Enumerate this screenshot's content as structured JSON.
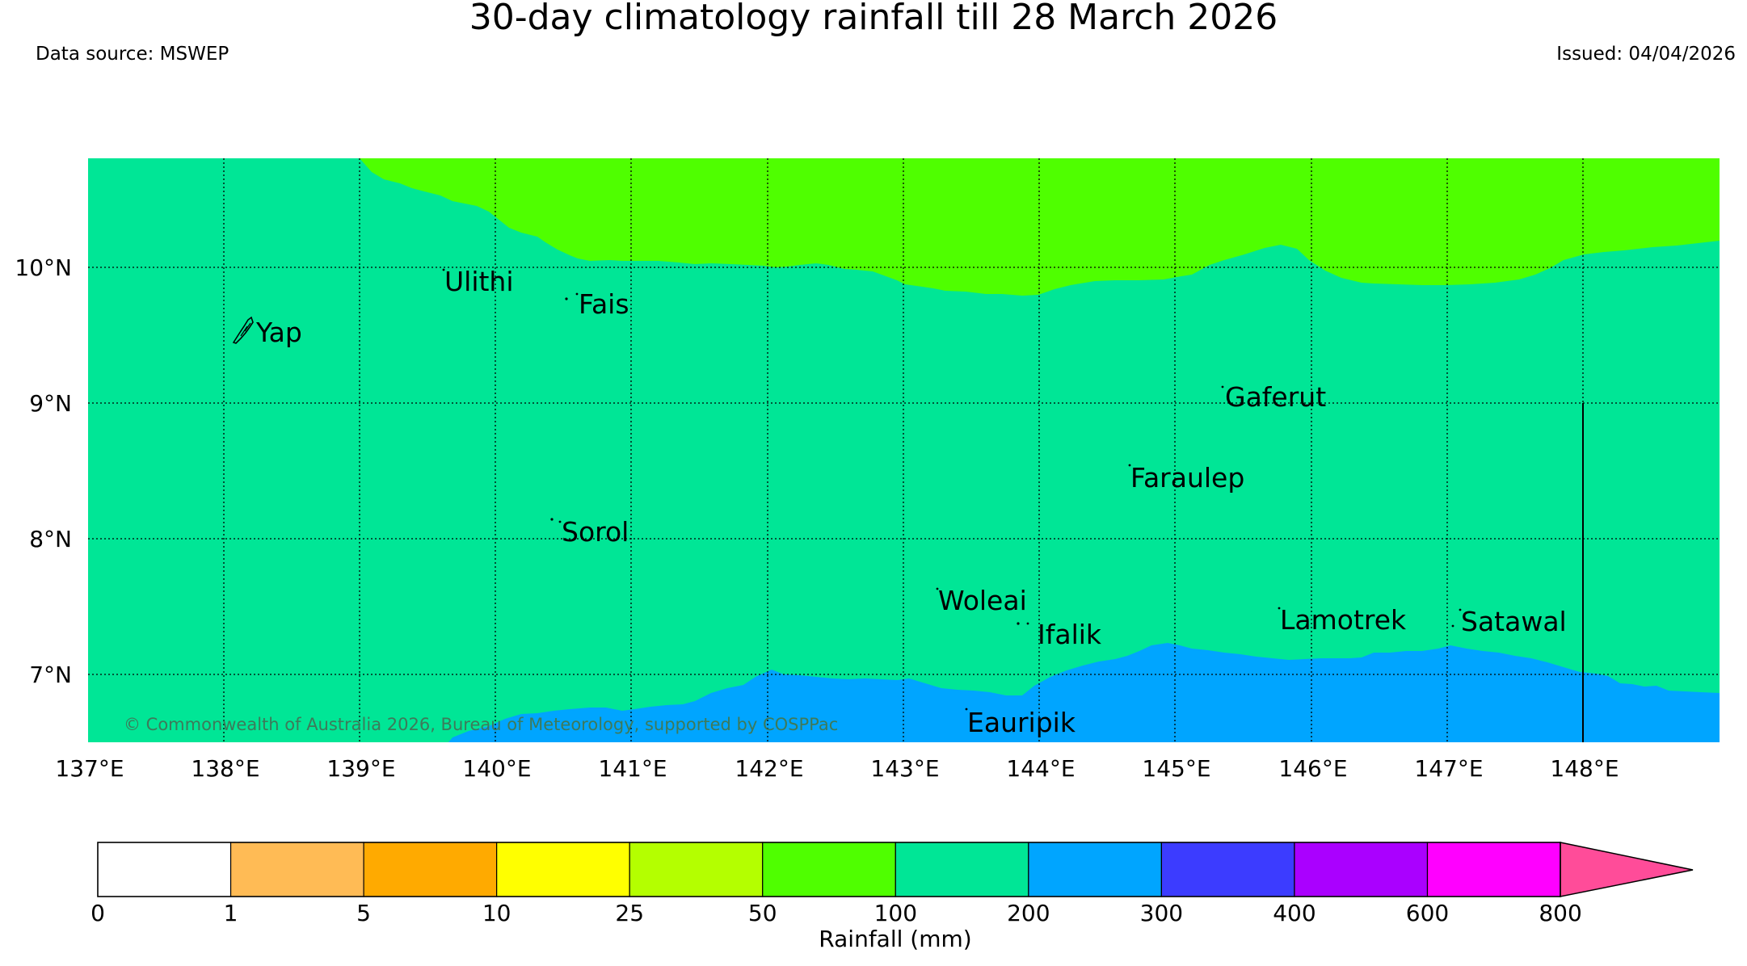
{
  "title": "30-day climatology rainfall till 28 March 2026",
  "data_source": "Data source: MSWEP",
  "issued": "Issued: 04/04/2026",
  "copyright": "© Commonwealth of Australia 2026, Bureau of Meteorology, supported by COSPPac",
  "lon_labels": [
    "137°E",
    "138°E",
    "139°E",
    "140°E",
    "141°E",
    "142°E",
    "143°E",
    "144°E",
    "145°E",
    "146°E",
    "147°E",
    "148°E"
  ],
  "lat_labels": [
    "10°N",
    "9°N",
    "8°N",
    "7°N"
  ],
  "places": [
    "Yap",
    "Ulithi",
    "Fais",
    "Gaferut",
    "Faraulep",
    "Sorol",
    "Woleai",
    "Ifalik",
    "Lamotrek",
    "Satawal",
    "Eauripik"
  ],
  "colorbar": {
    "label": "Rainfall (mm)",
    "ticks": [
      "0",
      "1",
      "5",
      "10",
      "25",
      "50",
      "100",
      "200",
      "300",
      "400",
      "600",
      "800"
    ],
    "colors": [
      "#ffffff",
      "#ffbb55",
      "#ffaa00",
      "#ffff00",
      "#b4ff00",
      "#4fff00",
      "#00e696",
      "#00a5ff",
      "#3c3cff",
      "#aa00ff",
      "#ff00ff",
      "#ff4c99"
    ]
  },
  "zones": {
    "band_50_100": "#4fff00",
    "band_100_200": "#00e696",
    "band_200_300": "#00a5ff"
  }
}
